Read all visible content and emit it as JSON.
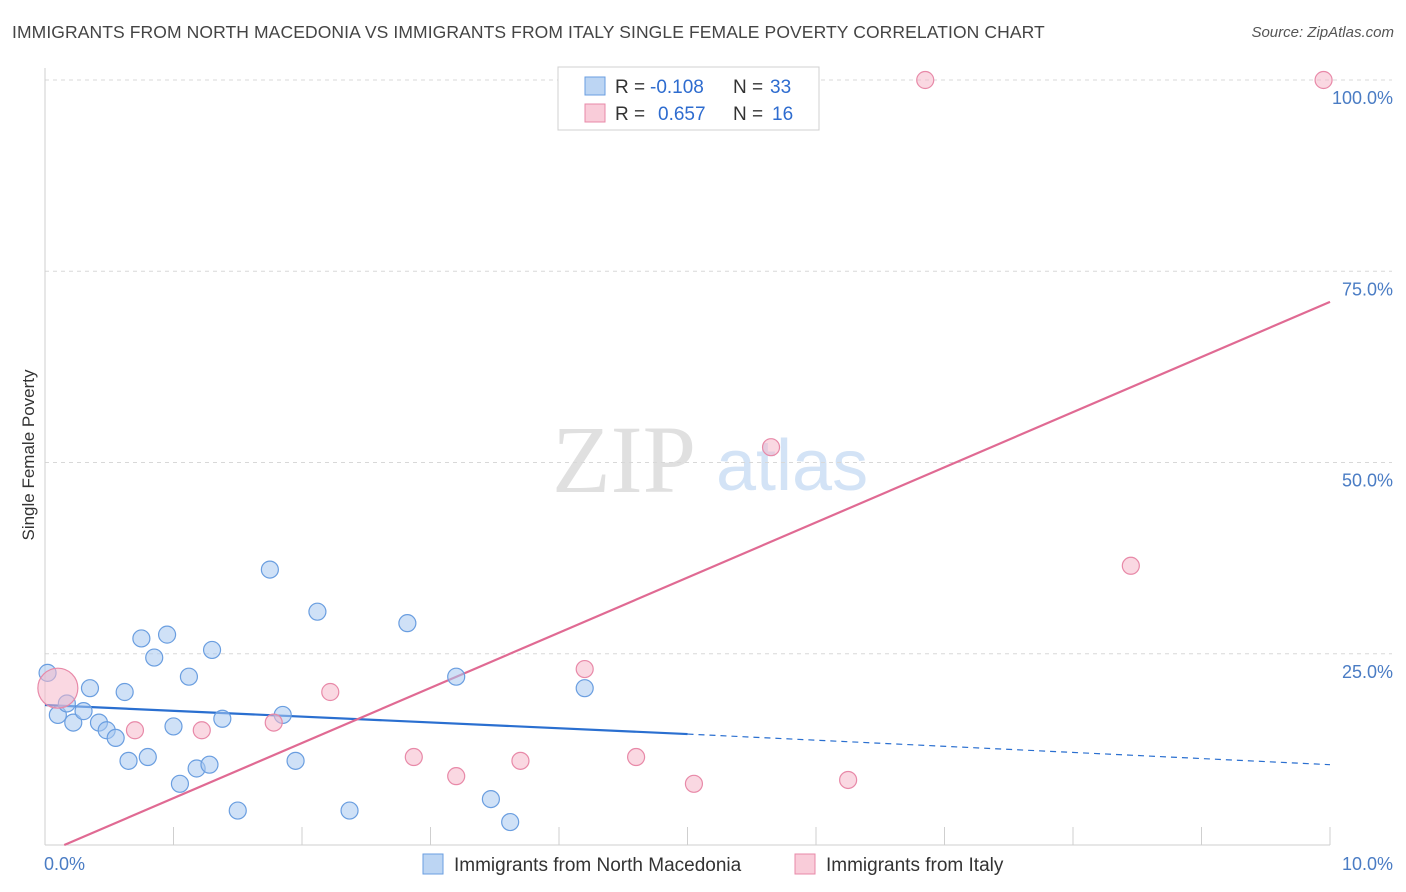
{
  "title": "IMMIGRANTS FROM NORTH MACEDONIA VS IMMIGRANTS FROM ITALY SINGLE FEMALE POVERTY CORRELATION CHART",
  "source": "Source: ZipAtlas.com",
  "watermark": {
    "zip": "ZIP",
    "atlas": "atlas"
  },
  "colors": {
    "blue_fill": "#a8c8f0",
    "blue_stroke": "#6a9ee0",
    "blue_line": "#2a6fd0",
    "pink_fill": "#f6b8cb",
    "pink_stroke": "#e889a8",
    "pink_line": "#e06a93",
    "grid": "#d8d8d8",
    "axis_text": "#4a7cc4"
  },
  "legend": {
    "rows": [
      {
        "r_label": "R =",
        "r_value": "-0.108",
        "n_label": "N =",
        "n_value": "33"
      },
      {
        "r_label": "R =",
        "r_value": "0.657",
        "n_label": "N =",
        "n_value": "16"
      }
    ]
  },
  "chart_data": {
    "type": "scatter",
    "title": "IMMIGRANTS FROM NORTH MACEDONIA VS IMMIGRANTS FROM ITALY SINGLE FEMALE POVERTY CORRELATION CHART",
    "xlabel": "",
    "ylabel": "Single Female Poverty",
    "xlim": [
      0,
      10
    ],
    "ylim": [
      0,
      100
    ],
    "x_tick_labels": [
      "0.0%",
      "10.0%"
    ],
    "y_ticks": [
      {
        "value": 25,
        "label": "25.0%"
      },
      {
        "value": 50,
        "label": "50.0%"
      },
      {
        "value": 75,
        "label": "75.0%"
      },
      {
        "value": 100,
        "label": "100.0%"
      }
    ],
    "grid": true,
    "series": [
      {
        "name": "Immigrants from North Macedonia",
        "color": "blue",
        "points": [
          [
            0.02,
            22.5
          ],
          [
            0.1,
            17.0
          ],
          [
            0.17,
            18.5
          ],
          [
            0.22,
            16.0
          ],
          [
            0.3,
            17.5
          ],
          [
            0.35,
            20.5
          ],
          [
            0.42,
            16.0
          ],
          [
            0.48,
            15.0
          ],
          [
            0.55,
            14.0
          ],
          [
            0.62,
            20.0
          ],
          [
            0.65,
            11.0
          ],
          [
            0.75,
            27.0
          ],
          [
            0.8,
            11.5
          ],
          [
            0.85,
            24.5
          ],
          [
            0.95,
            27.5
          ],
          [
            1.0,
            15.5
          ],
          [
            1.05,
            8.0
          ],
          [
            1.12,
            22.0
          ],
          [
            1.18,
            10.0
          ],
          [
            1.28,
            10.5
          ],
          [
            1.3,
            25.5
          ],
          [
            1.38,
            16.5
          ],
          [
            1.5,
            4.5
          ],
          [
            1.75,
            36.0
          ],
          [
            1.85,
            17.0
          ],
          [
            1.95,
            11.0
          ],
          [
            2.12,
            30.5
          ],
          [
            2.37,
            4.5
          ],
          [
            2.82,
            29.0
          ],
          [
            3.2,
            22.0
          ],
          [
            3.47,
            6.0
          ],
          [
            3.62,
            3.0
          ],
          [
            4.2,
            20.5
          ]
        ],
        "trend": {
          "x0": 0,
          "y0": 18.3,
          "x1": 5.0,
          "y1": 14.5,
          "dashed_to_x": 10.0,
          "dashed_to_y": 10.5
        }
      },
      {
        "name": "Immigrants from Italy",
        "color": "pink",
        "points": [
          [
            0.1,
            20.5
          ],
          [
            0.7,
            15.0
          ],
          [
            1.22,
            15.0
          ],
          [
            1.78,
            16.0
          ],
          [
            2.22,
            20.0
          ],
          [
            2.87,
            11.5
          ],
          [
            3.2,
            9.0
          ],
          [
            3.7,
            11.0
          ],
          [
            4.2,
            23.0
          ],
          [
            4.6,
            11.5
          ],
          [
            5.05,
            8.0
          ],
          [
            5.65,
            52.0
          ],
          [
            6.25,
            8.5
          ],
          [
            6.85,
            100.0
          ],
          [
            8.45,
            36.5
          ],
          [
            9.95,
            100.0
          ]
        ],
        "trend": {
          "x0": 0.15,
          "y0": 0.0,
          "x1": 10.0,
          "y1": 71.0
        }
      }
    ]
  }
}
